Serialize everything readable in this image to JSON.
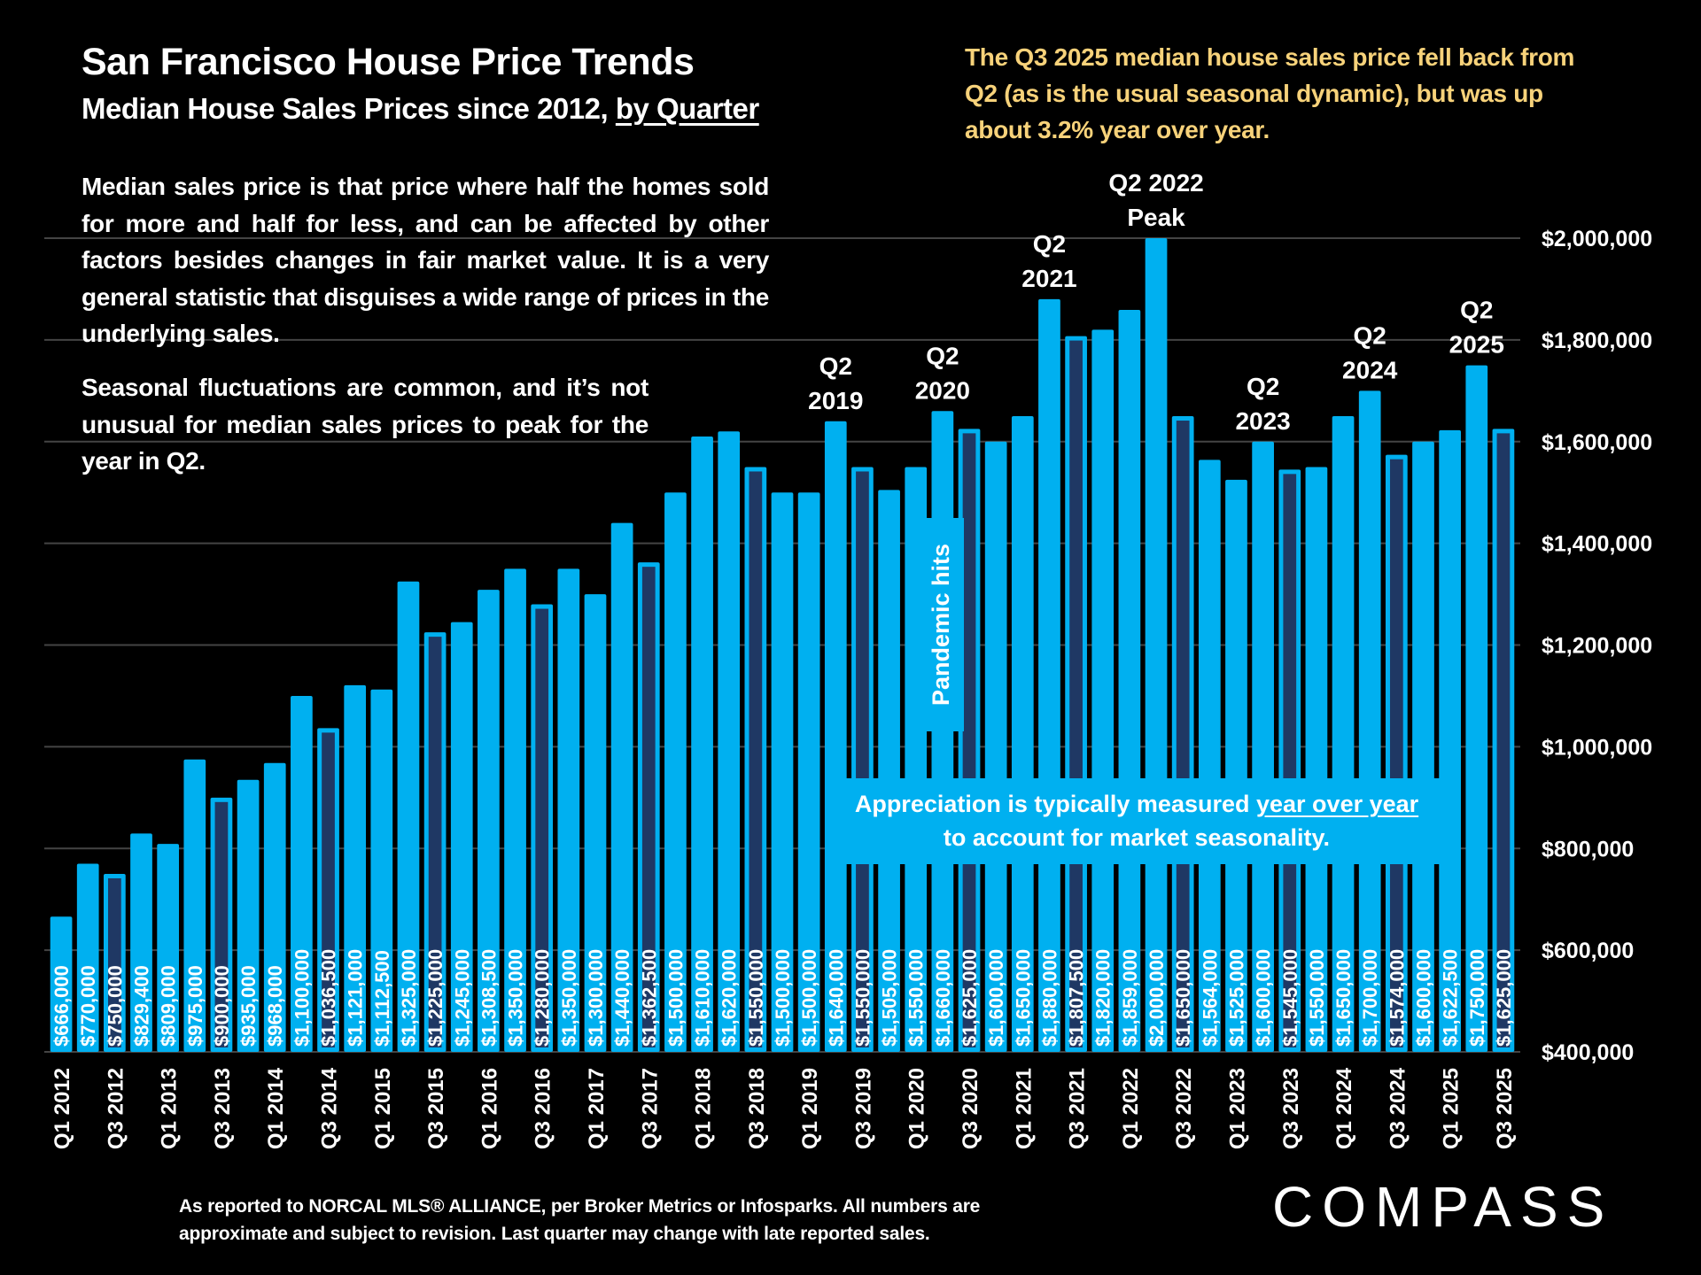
{
  "header": {
    "title": "San Francisco House Price Trends",
    "subtitle_main": "Median House Sales Prices since 2012, ",
    "subtitle_link": "by Quarter"
  },
  "note": "The Q3 2025 median house sales price fell back from Q2 (as is the usual seasonal dynamic), but was up about 3.2% year over year.",
  "paragraphs": [
    "Median sales price is that price where half the homes sold for more and half for less, and can be affected by other factors besides changes in fair market value. It is a very general statistic that disguises a wide range of prices in the underlying sales.",
    "Seasonal fluctuations are common, and it’s not unusual for median sales prices to peak for the year in Q2."
  ],
  "callouts": {
    "pandemic": "Pandemic hits",
    "appreciation_before": "Appreciation is typically measured ",
    "appreciation_link": "year over year",
    "appreciation_after": "to account for market seasonality."
  },
  "footer": [
    "As reported to NORCAL MLS® ALLIANCE, per Broker Metrics or Infosparks. All numbers are",
    "approximate and subject to revision. Last quarter may change with late reported sales."
  ],
  "logo": "COMPASS",
  "colors": {
    "bar": "#00B0F0",
    "q3_bar_fill": "#1F3864",
    "note_text": "#F7D27A",
    "background": "#000000",
    "grid": "#444444"
  },
  "chart_data": {
    "type": "bar",
    "title": "San Francisco House Price Trends",
    "subtitle": "Median House Sales Prices since 2012, by Quarter",
    "ylim": [
      400000,
      2000000
    ],
    "y_ticks": [
      "$400,000",
      "$600,000",
      "$800,000",
      "$1,000,000",
      "$1,200,000",
      "$1,400,000",
      "$1,600,000",
      "$1,800,000",
      "$2,000,000"
    ],
    "y_tick_values": [
      400000,
      600000,
      800000,
      1000000,
      1200000,
      1400000,
      1600000,
      1800000,
      2000000
    ],
    "y_axis_side": "right",
    "grid": true,
    "highlight": "Q3 bars shown with dark fill",
    "categories": [
      "Q1 2012",
      "Q2 2012",
      "Q3 2012",
      "Q4 2012",
      "Q1 2013",
      "Q2 2013",
      "Q3 2013",
      "Q4 2013",
      "Q1 2014",
      "Q2 2014",
      "Q3 2014",
      "Q4 2014",
      "Q1 2015",
      "Q2 2015",
      "Q3 2015",
      "Q4 2015",
      "Q1 2016",
      "Q2 2016",
      "Q3 2016",
      "Q4 2016",
      "Q1 2017",
      "Q2 2017",
      "Q3 2017",
      "Q4 2017",
      "Q1 2018",
      "Q2 2018",
      "Q3 2018",
      "Q4 2018",
      "Q1 2019",
      "Q2 2019",
      "Q3 2019",
      "Q4 2019",
      "Q1 2020",
      "Q2 2020",
      "Q3 2020",
      "Q4 2020",
      "Q1 2021",
      "Q2 2021",
      "Q3 2021",
      "Q4 2021",
      "Q1 2022",
      "Q2 2022",
      "Q3 2022",
      "Q4 2022",
      "Q1 2023",
      "Q2 2023",
      "Q3 2023",
      "Q4 2023",
      "Q1 2024",
      "Q2 2024",
      "Q3 2024",
      "Q4 2024",
      "Q1 2025",
      "Q2 2025",
      "Q3 2025"
    ],
    "shown_x_labels": "Q1 and Q3 only",
    "values": [
      666000,
      770000,
      750000,
      829400,
      809000,
      975000,
      900000,
      935000,
      968000,
      1100000,
      1036500,
      1121000,
      1112500,
      1325000,
      1225000,
      1245000,
      1308500,
      1350000,
      1280000,
      1350000,
      1300000,
      1440000,
      1362500,
      1500000,
      1610000,
      1620000,
      1550000,
      1500000,
      1500000,
      1640000,
      1550000,
      1505000,
      1550000,
      1660000,
      1625000,
      1600000,
      1650000,
      1880000,
      1807500,
      1820000,
      1859000,
      2000000,
      1650000,
      1564000,
      1525000,
      1600000,
      1545000,
      1550000,
      1650000,
      1700000,
      1574000,
      1600000,
      1622500,
      1750000,
      1625000
    ],
    "data_labels": [
      "$666,000",
      "$770,000",
      "$750,000",
      "$829,400",
      "$809,000",
      "$975,000",
      "$900,000",
      "$935,000",
      "$968,000",
      "$1,100,000",
      "$1,036,500",
      "$1,121,000",
      "$1,112,500",
      "$1,325,000",
      "$1,225,000",
      "$1,245,000",
      "$1,308,500",
      "$1,350,000",
      "$1,280,000",
      "$1,350,000",
      "$1,300,000",
      "$1,440,000",
      "$1,362,500",
      "$1,500,000",
      "$1,610,000",
      "$1,620,000",
      "$1,550,000",
      "$1,500,000",
      "$1,500,000",
      "$1,640,000",
      "$1,550,000",
      "$1,505,000",
      "$1,550,000",
      "$1,660,000",
      "$1,625,000",
      "$1,600,000",
      "$1,650,000",
      "$1,880,000",
      "$1,807,500",
      "$1,820,000",
      "$1,859,000",
      "$2,000,000",
      "$1,650,000",
      "$1,564,000",
      "$1,525,000",
      "$1,600,000",
      "$1,545,000",
      "$1,550,000",
      "$1,650,000",
      "$1,700,000",
      "$1,574,000",
      "$1,600,000",
      "$1,622,500",
      "$1,750,000",
      "$1,625,000"
    ],
    "annotations": [
      {
        "category": "Q2 2019",
        "lines": [
          "Q2",
          "2019"
        ]
      },
      {
        "category": "Q2 2020",
        "lines": [
          "Q2",
          "2020"
        ]
      },
      {
        "category": "Q2 2021",
        "lines": [
          "Q2",
          "2021"
        ]
      },
      {
        "category": "Q2 2022",
        "lines": [
          "Q2 2022",
          "Peak"
        ]
      },
      {
        "category": "Q2 2023",
        "lines": [
          "Q2",
          "2023"
        ]
      },
      {
        "category": "Q2 2024",
        "lines": [
          "Q2",
          "2024"
        ]
      },
      {
        "category": "Q2 2025",
        "lines": [
          "Q2",
          "2025"
        ]
      }
    ]
  }
}
